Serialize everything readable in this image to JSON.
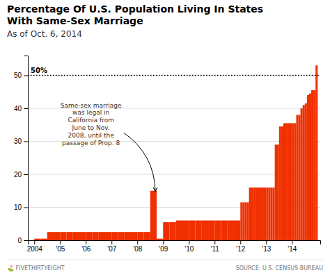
{
  "chart_data": {
    "type": "bar",
    "title": "Percentage Of U.S. Population Living In States\nWith Same-Sex Marriage",
    "subtitle": "As of Oct. 6, 2014",
    "credit": "⛳ FIVETHIRTYEIGHT",
    "source": "SOURCE: U.S. CENSUS BUREAU",
    "color": "#f03000",
    "grid": true,
    "x": [
      2004.0,
      2004.25,
      2004.5,
      2004.75,
      2005.0,
      2005.25,
      2005.5,
      2005.75,
      2006.0,
      2006.25,
      2006.5,
      2006.75,
      2007.0,
      2007.25,
      2007.5,
      2007.75,
      2008.0,
      2008.25,
      2008.5,
      2008.75,
      2009.0,
      2009.25,
      2009.5,
      2009.75,
      2010.0,
      2010.25,
      2010.5,
      2010.75,
      2011.0,
      2011.25,
      2011.5,
      2011.75,
      2012.0,
      2012.083,
      2012.167,
      2012.25,
      2012.333,
      2012.5,
      2012.583,
      2012.667,
      2012.75,
      2012.833,
      2013.0,
      2013.083,
      2013.167,
      2013.25,
      2013.333,
      2013.5,
      2013.583,
      2013.667,
      2013.75,
      2013.833,
      2014.0,
      2014.083,
      2014.167,
      2014.25,
      2014.333,
      2014.417,
      2014.5,
      2014.583,
      2014.667,
      2014.75,
      2014.833,
      2014.917
    ],
    "values": [
      0.5,
      0.5,
      2.5,
      2.5,
      2.5,
      2.5,
      2.5,
      2.5,
      2.5,
      2.5,
      2.5,
      2.5,
      2.5,
      2.5,
      2.5,
      2.5,
      2.5,
      2.5,
      15.0,
      0.5,
      5.5,
      5.5,
      6.0,
      6.0,
      6.0,
      6.0,
      6.0,
      6.0,
      6.0,
      6.0,
      6.0,
      6.0,
      11.5,
      11.5,
      11.5,
      11.5,
      16.0,
      16.0,
      16.0,
      16.0,
      16.0,
      16.0,
      16.0,
      16.0,
      16.0,
      16.0,
      29.0,
      34.5,
      34.5,
      35.5,
      35.5,
      35.5,
      35.5,
      35.5,
      38.0,
      38.0,
      40.0,
      41.0,
      41.5,
      44.0,
      44.5,
      45.5,
      45.5,
      53.0
    ],
    "xlim": [
      2003.75,
      2015.1
    ],
    "xticks": [
      2004,
      {
        "value": 2005,
        "label": "'05"
      },
      {
        "value": 2006,
        "label": "'06"
      },
      {
        "value": 2007,
        "label": "'07"
      },
      {
        "value": 2008,
        "label": "'08"
      },
      {
        "value": 2009,
        "label": "'09"
      },
      {
        "value": 2010,
        "label": "'10"
      },
      {
        "value": 2011,
        "label": "'11"
      },
      {
        "value": 2012,
        "label": "'12"
      },
      {
        "value": 2013,
        "label": "'13"
      },
      {
        "value": 2014,
        "label": "'14"
      }
    ],
    "ylim": [
      0,
      56
    ],
    "yticks": [
      0,
      10,
      20,
      30,
      40,
      50
    ],
    "hlines": [
      {
        "value": 50,
        "label": "50%",
        "line_style": "dotted"
      }
    ],
    "annotations": [
      {
        "text": "Same-sex marriage\nwas legal in\nCalifornia from\nJune to Nov.\n2008, until the\npassage of Prop. 8",
        "x": 2008.7,
        "y": 14.8,
        "text_x": 2006.2,
        "text_y": 42
      }
    ]
  }
}
